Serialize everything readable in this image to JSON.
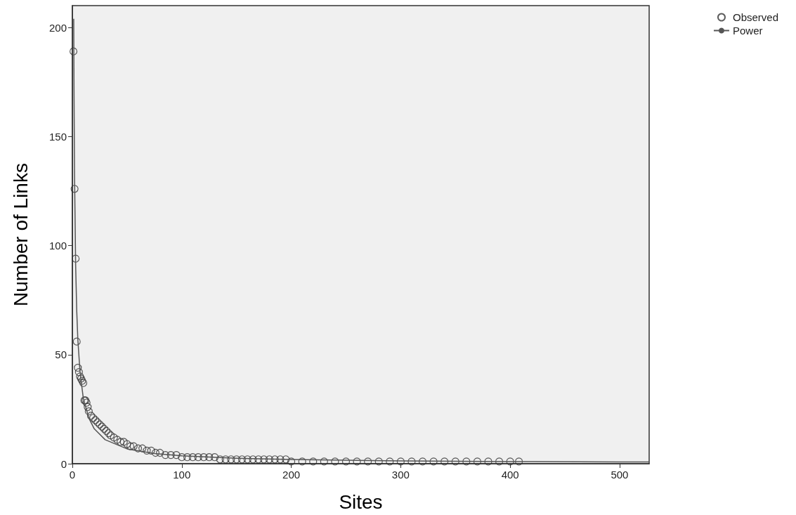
{
  "chart_data": {
    "type": "scatter",
    "xlabel": "Sites",
    "ylabel": "Number of Links",
    "xlim": [
      0,
      527
    ],
    "xticks": [
      0,
      100,
      200,
      300,
      400,
      500
    ],
    "ylim": [
      0,
      210
    ],
    "yticks": [
      0,
      50,
      100,
      150,
      200
    ],
    "grid": false,
    "legend": "top right",
    "series": [
      {
        "name": "Observed",
        "marker": "circle",
        "color": "#333333",
        "x": [
          1,
          2,
          3,
          4,
          5,
          6,
          7,
          8,
          9,
          10,
          11,
          12,
          13,
          14,
          15,
          17,
          19,
          21,
          23,
          25,
          27,
          29,
          31,
          33,
          35,
          38,
          41,
          44,
          47,
          50,
          53,
          56,
          60,
          64,
          68,
          72,
          76,
          80,
          85,
          90,
          95,
          100,
          105,
          110,
          115,
          120,
          125,
          130,
          135,
          140,
          145,
          150,
          155,
          160,
          165,
          170,
          175,
          180,
          185,
          190,
          195,
          200,
          210,
          220,
          230,
          240,
          250,
          260,
          270,
          280,
          290,
          300,
          310,
          320,
          330,
          340,
          350,
          360,
          370,
          380,
          390,
          400,
          408
        ],
        "values": [
          189,
          126,
          94,
          56,
          44,
          42,
          40,
          39,
          38,
          37,
          29,
          29,
          28,
          26,
          24,
          22,
          21,
          20,
          19,
          18,
          17,
          16,
          15,
          14,
          13,
          12,
          11,
          10,
          10,
          9,
          8,
          8,
          7,
          7,
          6,
          6,
          5,
          5,
          4,
          4,
          4,
          3,
          3,
          3,
          3,
          3,
          3,
          3,
          2,
          2,
          2,
          2,
          2,
          2,
          2,
          2,
          2,
          2,
          2,
          2,
          2,
          1,
          1,
          1,
          1,
          1,
          1,
          1,
          1,
          1,
          1,
          1,
          1,
          1,
          1,
          1,
          1,
          1,
          1,
          1,
          1,
          1,
          1
        ]
      },
      {
        "name": "Power",
        "type": "line",
        "marker": "none",
        "color": "#555555",
        "x": [
          1.25,
          1.5,
          2,
          3,
          4,
          5,
          7,
          10,
          15,
          20,
          30,
          50,
          75,
          100,
          150,
          200,
          300,
          400,
          500,
          527
        ],
        "values": [
          204,
          172,
          132,
          91,
          70,
          57,
          42,
          30,
          21,
          16,
          11,
          6.8,
          4.7,
          3.6,
          2.5,
          1.9,
          1.3,
          1,
          0.8,
          0.8
        ]
      }
    ]
  }
}
